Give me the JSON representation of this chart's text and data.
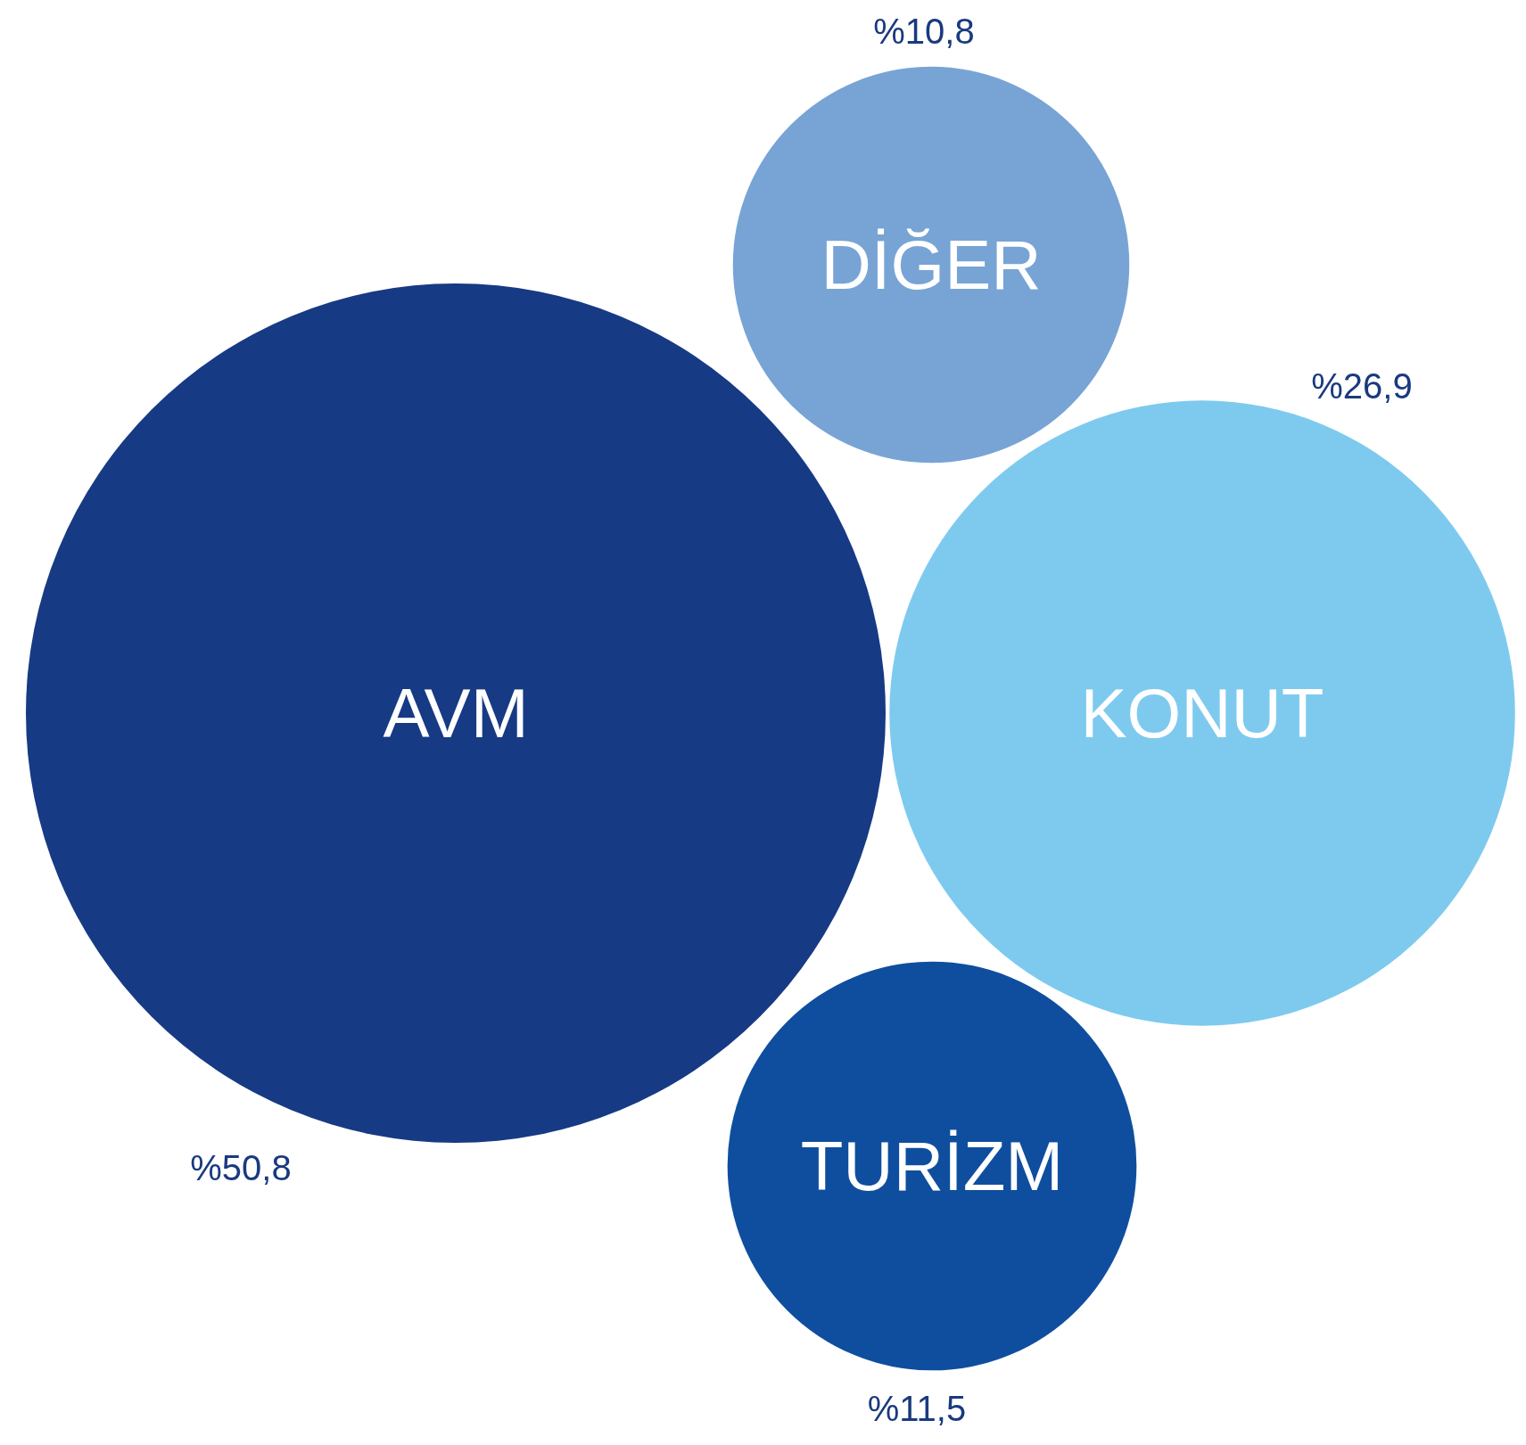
{
  "chart_data": {
    "type": "other",
    "categories": [
      "AVM",
      "KONUT",
      "TURİZM",
      "DİĞER"
    ],
    "values": [
      50.8,
      26.9,
      11.5,
      10.8
    ],
    "value_labels": [
      "%50,8",
      "%26,9",
      "%11,5",
      "%10,8"
    ],
    "colors": [
      "#173a84",
      "#7ecaef",
      "#0f4e9e",
      "#77a4d5"
    ]
  }
}
